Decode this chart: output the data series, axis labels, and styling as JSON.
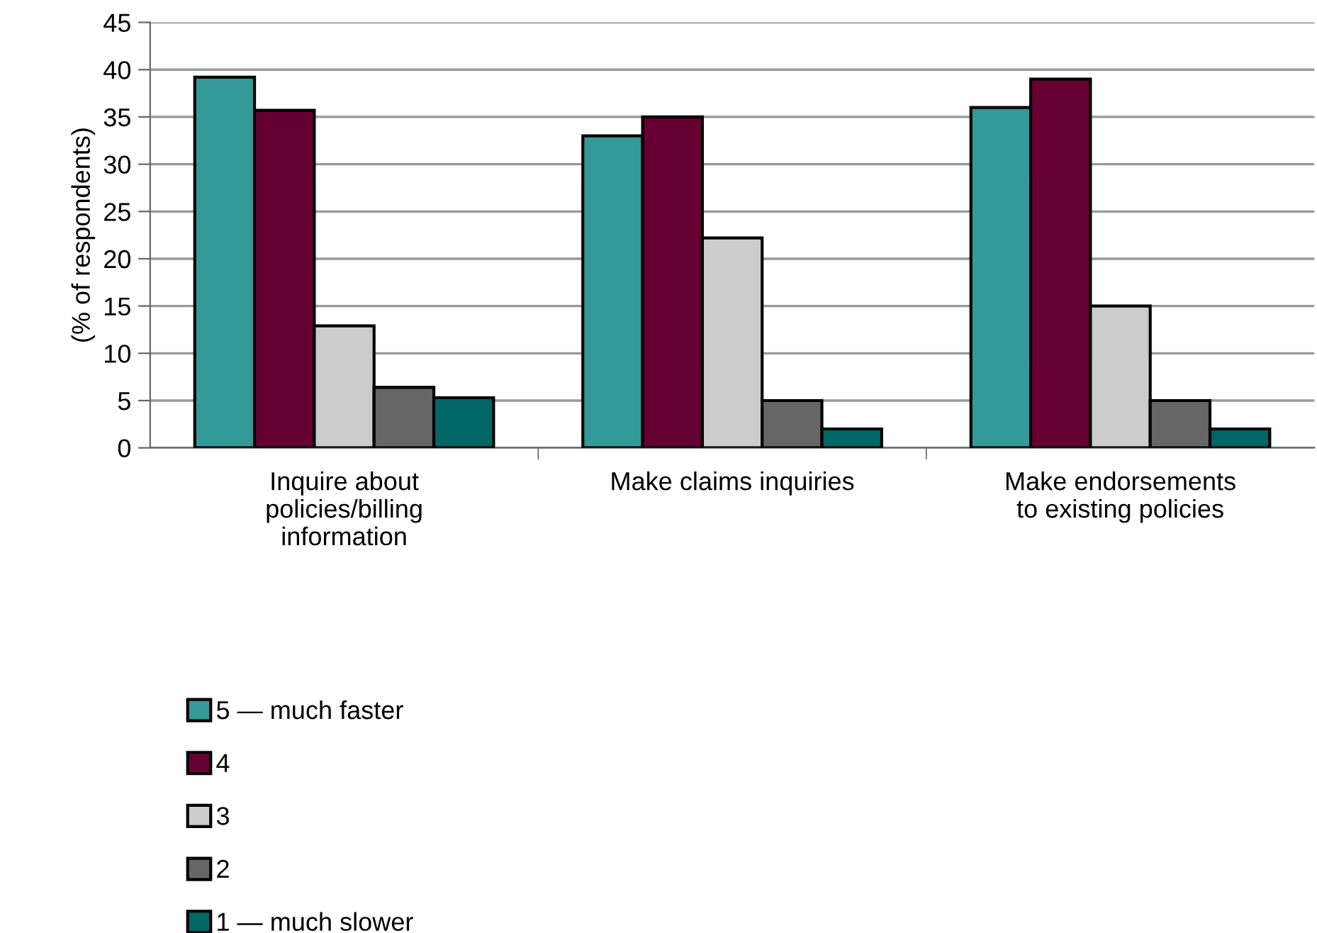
{
  "chart_data": {
    "type": "bar",
    "ylabel": "(% of respondents)",
    "categories": [
      "Inquire about\npolicies/billing\ninformation",
      "Make claims inquiries",
      "Make endorsements\nto existing policies"
    ],
    "series": [
      {
        "name": "5 — much faster",
        "color": "#339999",
        "values": [
          39.2,
          33,
          36
        ]
      },
      {
        "name": "4",
        "color": "#660033",
        "values": [
          35.7,
          35,
          39
        ]
      },
      {
        "name": "3",
        "color": "#cccccc",
        "values": [
          12.9,
          22.2,
          15
        ]
      },
      {
        "name": "2",
        "color": "#666666",
        "values": [
          6.4,
          5,
          5
        ]
      },
      {
        "name": "1 — much slower",
        "color": "#006666",
        "values": [
          5.3,
          2,
          2
        ]
      }
    ],
    "ylim": [
      0,
      45
    ],
    "yticks": [
      0,
      5,
      10,
      15,
      20,
      25,
      30,
      35,
      40,
      45
    ],
    "grid": "y",
    "legend": "bottom left"
  }
}
